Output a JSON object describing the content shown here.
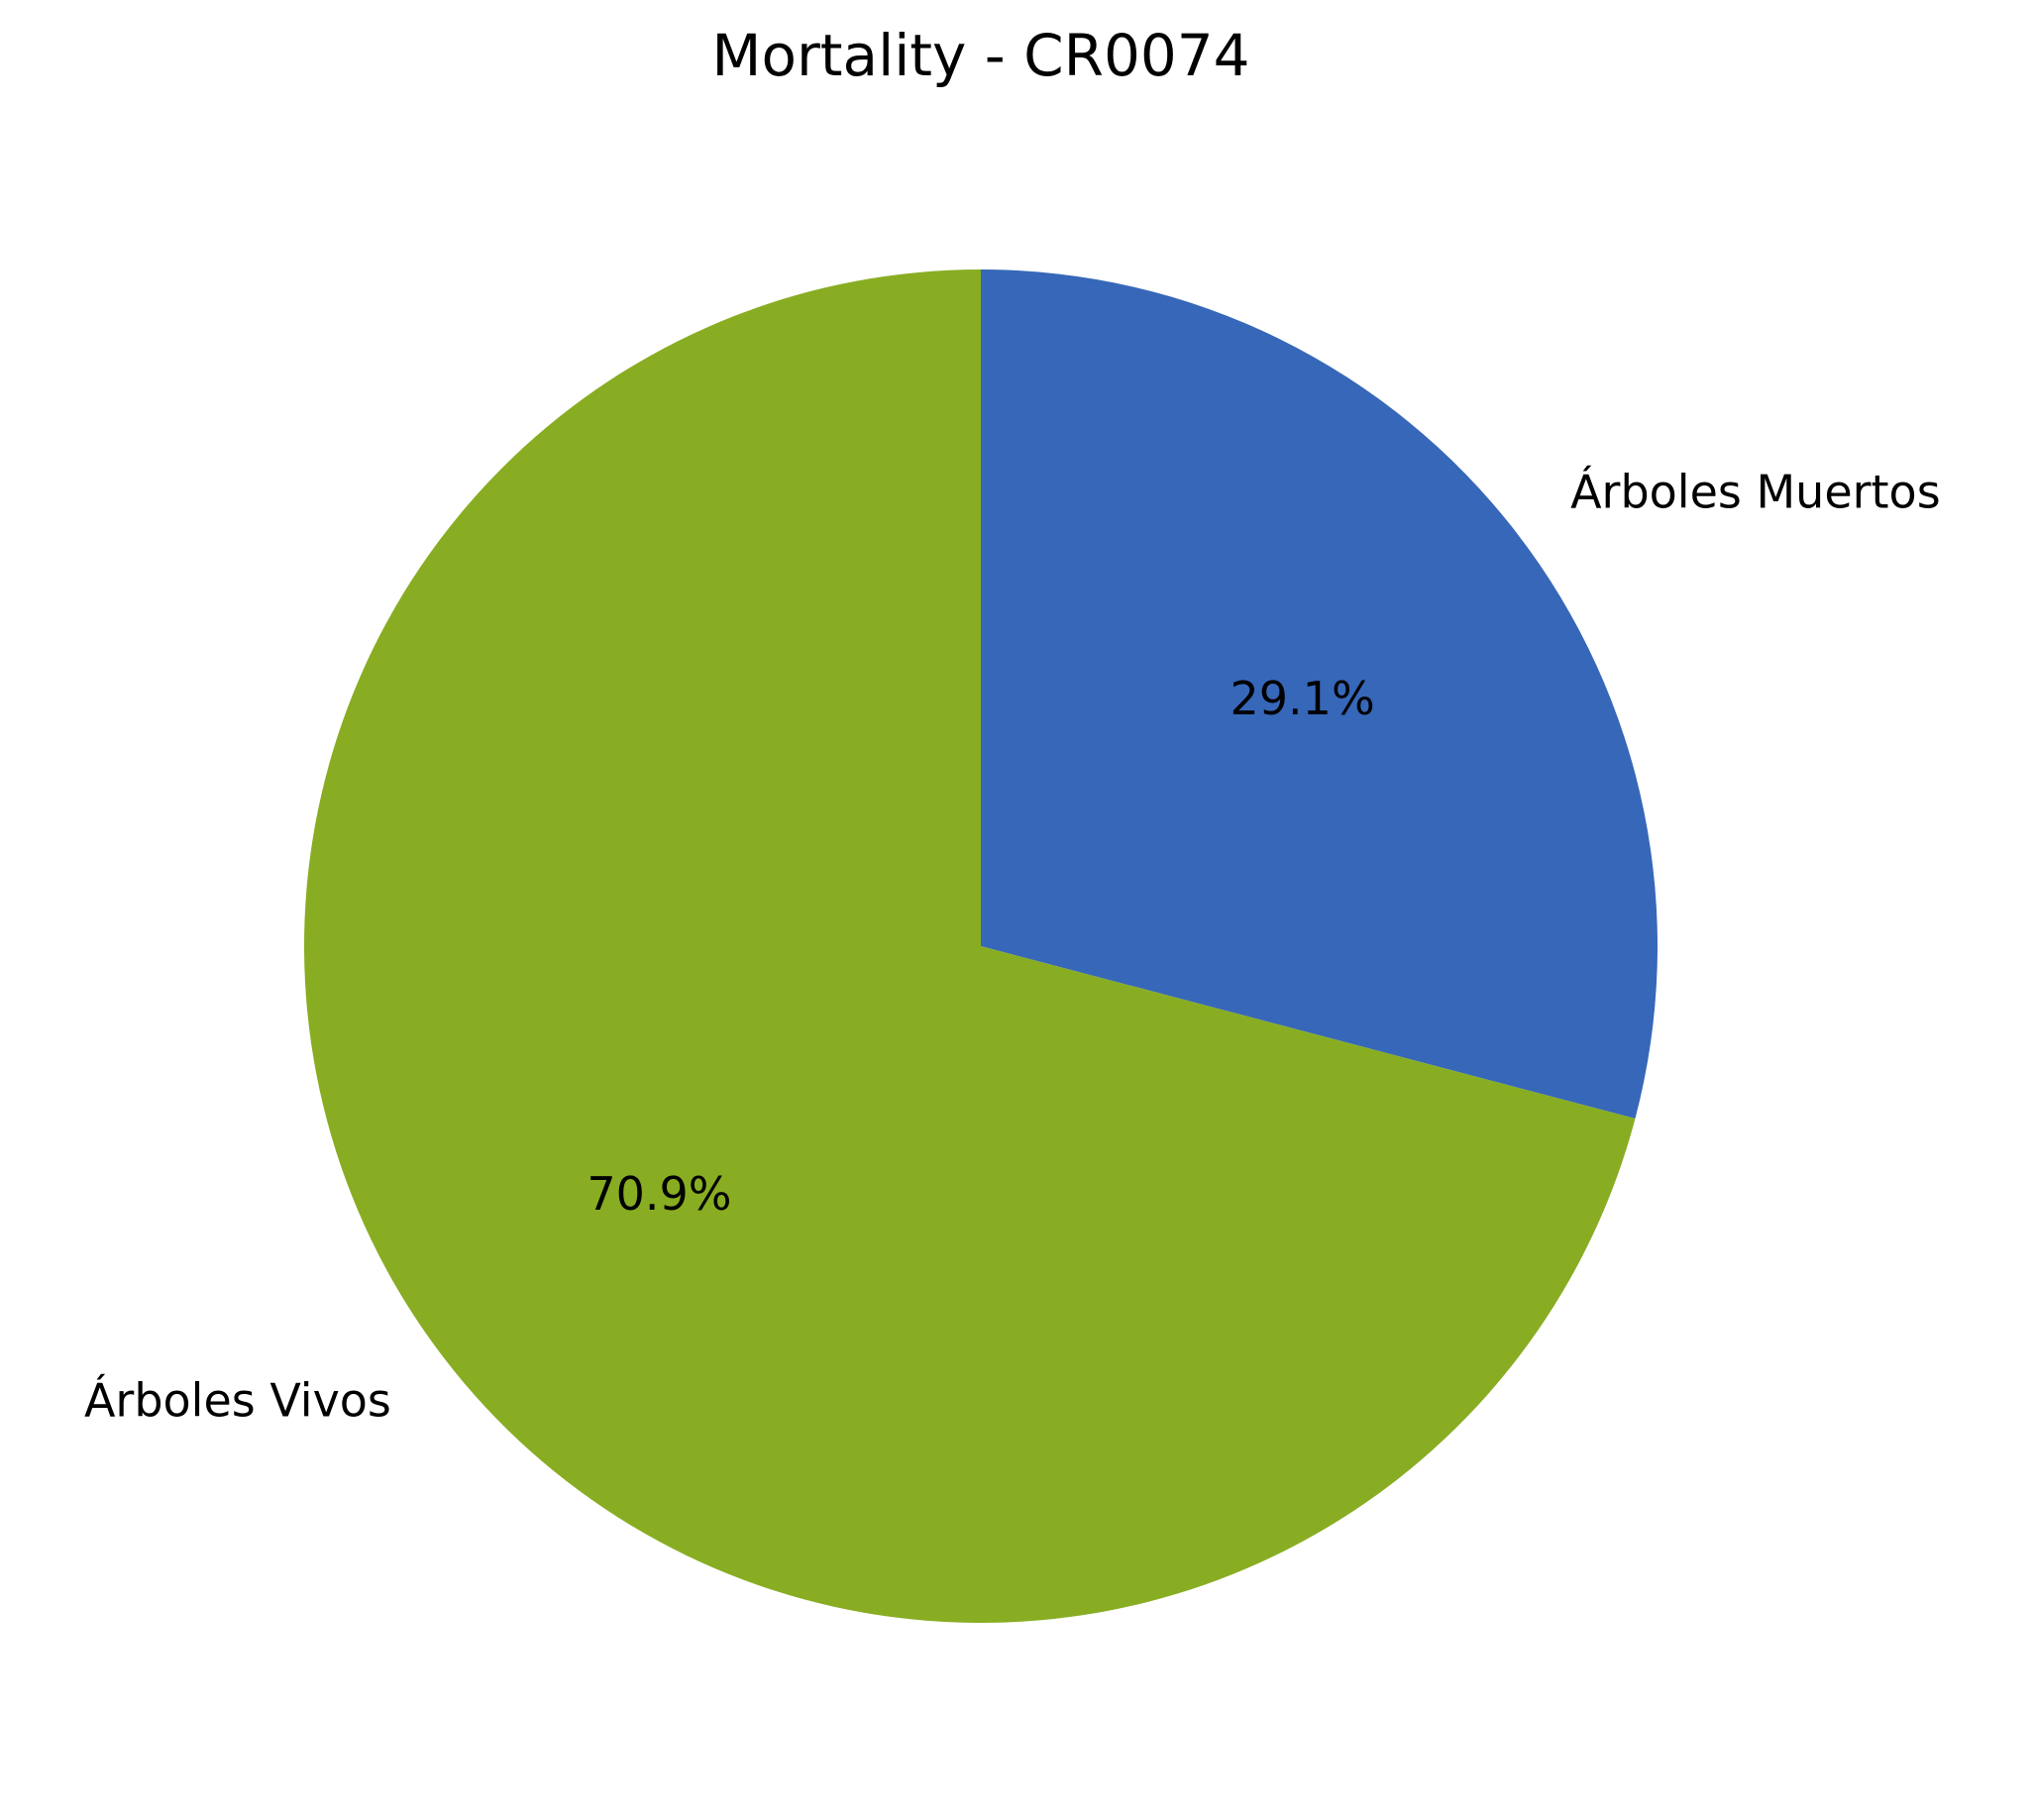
{
  "chart_data": {
    "type": "pie",
    "title": "Mortality - CR0074",
    "start_angle_deg": 90,
    "direction": "clockwise",
    "slices": [
      {
        "label": "Árboles Muertos",
        "value": 29.1,
        "pct_label": "29.1%",
        "color": "#3667b8"
      },
      {
        "label": "Árboles Vivos",
        "value": 70.9,
        "pct_label": "70.9%",
        "color": "#88ad22"
      }
    ]
  }
}
